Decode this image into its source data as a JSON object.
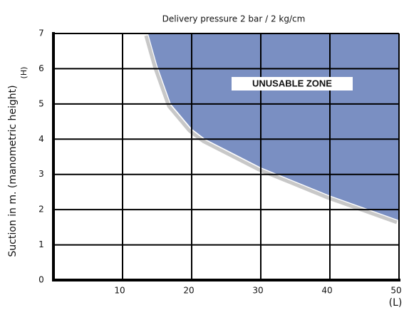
{
  "chart_data": {
    "type": "area",
    "title": "Delivery pressure 2 bar / 2 kg/cm",
    "ylabel": "Suction in m. (manometric height)",
    "ylabel_symbol": "(H)",
    "xlabel": "(L)",
    "annotation": "UNUSABLE ZONE",
    "x": [
      13.7,
      15,
      17,
      20,
      22,
      26,
      30,
      35,
      40,
      45,
      50
    ],
    "values": [
      7,
      6.1,
      5,
      4.3,
      4,
      3.6,
      3.2,
      2.8,
      2.4,
      2.05,
      1.7
    ],
    "color": "#7a8fc2",
    "boundary_color": "#c8c8c8",
    "xlim": [
      0,
      50
    ],
    "xticks": [
      10,
      20,
      30,
      40,
      50
    ],
    "ylim": [
      0,
      7
    ],
    "yticks": [
      0,
      1,
      2,
      3,
      4,
      5,
      6,
      7
    ],
    "grid": true
  }
}
